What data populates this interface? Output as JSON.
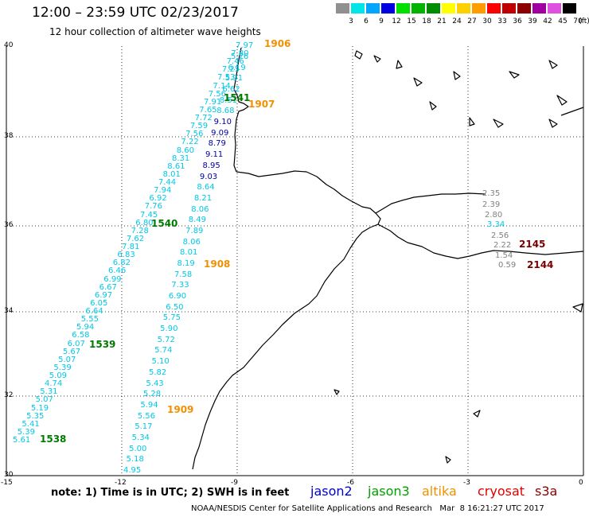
{
  "header": {
    "title": "12:00 – 23:59 UTC 02/23/2017",
    "subtitle": "12 hour collection of altimeter wave heights"
  },
  "legend": {
    "unit": "(ft)",
    "levels": [
      {
        "label": "3",
        "color": "#909090"
      },
      {
        "label": "6",
        "color": "#00e5e5"
      },
      {
        "label": "9",
        "color": "#00a5ff"
      },
      {
        "label": "12",
        "color": "#0000e0"
      },
      {
        "label": "15",
        "color": "#00e000"
      },
      {
        "label": "18",
        "color": "#00b400"
      },
      {
        "label": "21",
        "color": "#008c00"
      },
      {
        "label": "24",
        "color": "#ffff00"
      },
      {
        "label": "27",
        "color": "#ffd000"
      },
      {
        "label": "30",
        "color": "#ff9c00"
      },
      {
        "label": "33",
        "color": "#ff0000"
      },
      {
        "label": "36",
        "color": "#c00000"
      },
      {
        "label": "39",
        "color": "#8c0000"
      },
      {
        "label": "42",
        "color": "#a000a0"
      },
      {
        "label": "45",
        "color": "#e050e0"
      },
      {
        "label": "70",
        "color": "#000000"
      }
    ]
  },
  "axes": {
    "lon_labels": [
      "-15",
      "-12",
      "-9",
      "-6",
      "-3",
      "0"
    ],
    "lat_labels": [
      "40",
      "38",
      "36",
      "34",
      "32",
      "30"
    ]
  },
  "colors": {
    "cyan": "#00c8e8",
    "navy": "#0000a0",
    "green": "#007a00",
    "orange": "#f09000",
    "grey": "#808080",
    "darkred": "#7a0000"
  },
  "tracks": {
    "a": {
      "color": "#00c8e8",
      "values": [
        "7.97",
        "7.80",
        "7.46",
        "7.25",
        "7.53",
        "7.14",
        "7.56",
        "7.91",
        "7.65",
        "7.72",
        "7.59",
        "7.56",
        "7.22",
        "8.60",
        "8.31",
        "8.61",
        "8.01",
        "7.44",
        "7.94",
        "6.92",
        "7.76",
        "7.45",
        "6.80",
        "7.28",
        "7.62",
        "7.81",
        "6.83",
        "6.82",
        "6.46",
        "6.99",
        "6.67",
        "6.97",
        "6.05",
        "6.64",
        "5.55",
        "5.94",
        "6.58",
        "6.07",
        "5.67",
        "5.07",
        "5.39",
        "5.09",
        "4.74",
        "5.31",
        "5.07",
        "5.19",
        "5.35",
        "5.41",
        "5.39",
        "5.61"
      ]
    },
    "b": {
      "color": "#00c8e8",
      "values": [
        "5.76",
        "6.19",
        "5.91",
        "6.62",
        "8.51",
        "8.68",
        "9.10",
        "9.09",
        "8.79",
        "9.11",
        "8.95",
        "9.03",
        "8.64",
        "8.21",
        "8.06",
        "8.49",
        "7.89",
        "8.06",
        "8.01",
        "8.19",
        "7.58",
        "7.33",
        "6.90",
        "6.50",
        "5.75",
        "5.90",
        "5.72",
        "5.74",
        "5.10",
        "5.82",
        "5.43",
        "5.28",
        "5.94",
        "5.56",
        "5.17",
        "5.34",
        "5.00",
        "5.18",
        "4.95"
      ]
    },
    "c": {
      "values": [
        "2.35",
        "2.39",
        "2.80",
        "3.34",
        "2.56",
        "2.22",
        "1.54",
        "0.59"
      ]
    }
  },
  "time_labels": [
    {
      "text": "1906",
      "color": "#f09000"
    },
    {
      "text": "1541",
      "color": "#007a00"
    },
    {
      "text": "1907",
      "color": "#f09000"
    },
    {
      "text": "1540",
      "color": "#007a00"
    },
    {
      "text": "1908",
      "color": "#f09000"
    },
    {
      "text": "1539",
      "color": "#007a00"
    },
    {
      "text": "1909",
      "color": "#f09000"
    },
    {
      "text": "1538",
      "color": "#007a00"
    },
    {
      "text": "2145",
      "color": "#7a0000"
    },
    {
      "text": "2144",
      "color": "#7a0000"
    }
  ],
  "footer": {
    "note": "note: 1) Time is in UTC; 2) SWH is in feet",
    "satellites": [
      {
        "name": "jason2",
        "color": "#0000d0"
      },
      {
        "name": "jason3",
        "color": "#00a000"
      },
      {
        "name": "altika",
        "color": "#f09000"
      },
      {
        "name": "cryosat",
        "color": "#e00000"
      },
      {
        "name": "s3a",
        "color": "#8c0000"
      }
    ],
    "credit": "NOAA/NESDIS Center for Satellite Applications and Research   Mar  8 16:21:27 UTC 2017"
  }
}
